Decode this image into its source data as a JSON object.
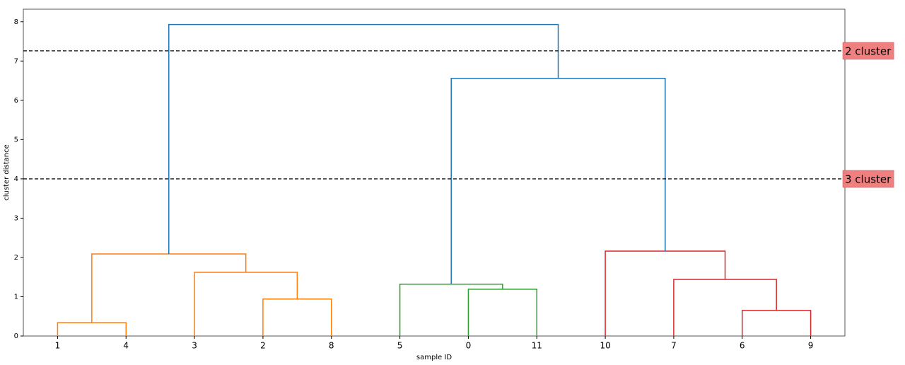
{
  "chart_data": {
    "type": "dendrogram",
    "xlabel": "sample ID",
    "ylabel": "cluster distance",
    "categories": [
      "1",
      "4",
      "3",
      "2",
      "8",
      "5",
      "0",
      "11",
      "10",
      "7",
      "6",
      "9"
    ],
    "links": [
      {
        "left": 0,
        "right": 1,
        "height": 0.34,
        "color": "#ff7f0e"
      },
      {
        "left": 3,
        "right": 4,
        "height": 0.94,
        "color": "#ff7f0e"
      },
      {
        "left": 2,
        "right": 13,
        "height": 1.62,
        "color": "#ff7f0e"
      },
      {
        "left": 12,
        "right": 14,
        "height": 2.09,
        "color": "#ff7f0e"
      },
      {
        "left": 6,
        "right": 7,
        "height": 1.19,
        "color": "#2ca02c"
      },
      {
        "left": 5,
        "right": 16,
        "height": 1.32,
        "color": "#2ca02c"
      },
      {
        "left": 10,
        "right": 11,
        "height": 0.65,
        "color": "#d62728"
      },
      {
        "left": 9,
        "right": 18,
        "height": 1.44,
        "color": "#d62728"
      },
      {
        "left": 8,
        "right": 19,
        "height": 2.16,
        "color": "#d62728"
      },
      {
        "left": 17,
        "right": 20,
        "height": 6.56,
        "color": "#1f77b4"
      },
      {
        "left": 15,
        "right": 21,
        "height": 7.93,
        "color": "#1f77b4"
      }
    ],
    "thresholds": [
      {
        "value": 7.26,
        "label": "2 cluster"
      },
      {
        "value": 4,
        "label": "3 cluster"
      }
    ],
    "threshold_label_color": "#f08080",
    "ylim": [
      0,
      8.32
    ],
    "yticks": [
      0,
      1,
      2,
      3,
      4,
      5,
      6,
      7,
      8
    ]
  }
}
